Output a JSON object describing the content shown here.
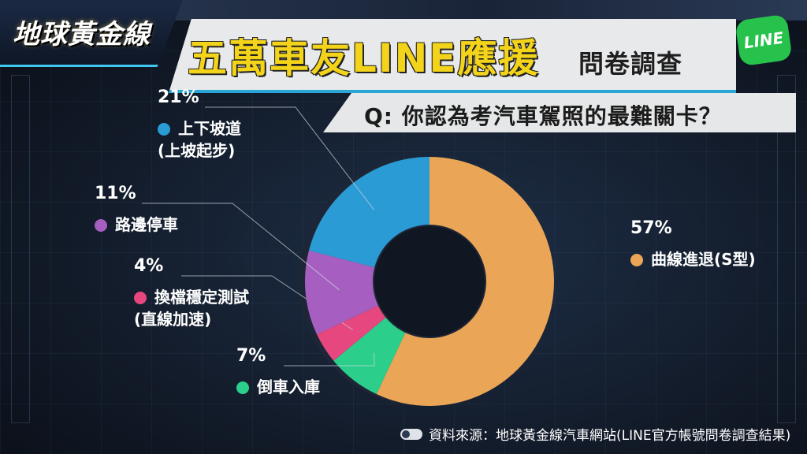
{
  "header": {
    "logo_text": "地球黃金線",
    "title_main": "五萬車友LINE應援",
    "title_sub": "問卷調查",
    "line_badge": "LINE",
    "question": "Q: 你認為考汽車駕照的最難關卡？"
  },
  "source": "資料來源：地球黃金線汽車網站(LINE官方帳號問卷調查結果)",
  "chart_data": {
    "type": "pie",
    "title": "Q: 你認為考汽車駕照的最難關卡？",
    "donut": true,
    "slices": [
      {
        "label": "曲線進退(S型)",
        "value": 57,
        "pct_label": "57%",
        "color": "#eba556"
      },
      {
        "label": "倒車入庫",
        "value": 7,
        "pct_label": "7%",
        "color": "#2bcf8b"
      },
      {
        "label": "換檔穩定測試(直線加速)",
        "label_lines": [
          "換檔穩定測試",
          "(直線加速)"
        ],
        "value": 4,
        "pct_label": "4%",
        "color": "#e5477e"
      },
      {
        "label": "路邊停車",
        "value": 11,
        "pct_label": "11%",
        "color": "#a65fc0"
      },
      {
        "label": "上下坡道(上坡起步)",
        "label_lines": [
          "上下坡道",
          "(上坡起步)"
        ],
        "value": 21,
        "pct_label": "21%",
        "color": "#2b9bd5"
      }
    ]
  }
}
